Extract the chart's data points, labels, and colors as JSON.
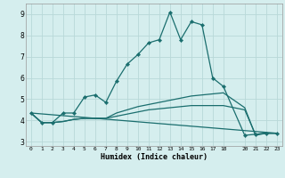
{
  "title": "",
  "xlabel": "Humidex (Indice chaleur)",
  "bg_color": "#d5eeee",
  "grid_color": "#b8d8d8",
  "line_color": "#1a6e6e",
  "xlim": [
    -0.5,
    23.5
  ],
  "ylim": [
    2.8,
    9.5
  ],
  "yticks": [
    3,
    4,
    5,
    6,
    7,
    8,
    9
  ],
  "xticks": [
    0,
    1,
    2,
    3,
    4,
    5,
    6,
    7,
    8,
    9,
    10,
    11,
    12,
    13,
    14,
    15,
    16,
    17,
    18,
    20,
    21,
    22,
    23
  ],
  "line1_x": [
    0,
    1,
    2,
    3,
    4,
    5,
    6,
    7,
    8,
    9,
    10,
    11,
    12,
    13,
    14,
    15,
    16,
    17,
    18,
    20,
    21,
    22,
    23
  ],
  "line1_y": [
    4.35,
    3.9,
    3.9,
    4.35,
    4.35,
    5.1,
    5.2,
    4.85,
    5.85,
    6.65,
    7.1,
    7.65,
    7.8,
    9.1,
    7.8,
    8.65,
    8.5,
    6.0,
    5.6,
    3.3,
    3.35,
    3.4,
    3.4
  ],
  "line2_x": [
    0,
    1,
    2,
    3,
    4,
    5,
    6,
    7,
    8,
    9,
    10,
    11,
    12,
    13,
    14,
    15,
    16,
    17,
    18,
    20,
    21,
    22,
    23
  ],
  "line2_y": [
    4.35,
    3.9,
    3.9,
    3.95,
    4.05,
    4.1,
    4.1,
    4.1,
    4.35,
    4.5,
    4.65,
    4.75,
    4.85,
    4.95,
    5.05,
    5.15,
    5.2,
    5.25,
    5.3,
    4.6,
    3.3,
    3.4,
    3.4
  ],
  "line3_x": [
    0,
    1,
    2,
    3,
    4,
    5,
    6,
    7,
    8,
    9,
    10,
    11,
    12,
    13,
    14,
    15,
    16,
    17,
    18,
    20,
    21,
    22,
    23
  ],
  "line3_y": [
    4.35,
    3.9,
    3.9,
    3.95,
    4.05,
    4.1,
    4.1,
    4.1,
    4.2,
    4.3,
    4.4,
    4.5,
    4.55,
    4.6,
    4.65,
    4.7,
    4.7,
    4.7,
    4.7,
    4.5,
    3.35,
    3.4,
    3.4
  ],
  "line4_x": [
    0,
    23
  ],
  "line4_y": [
    4.35,
    3.4
  ]
}
